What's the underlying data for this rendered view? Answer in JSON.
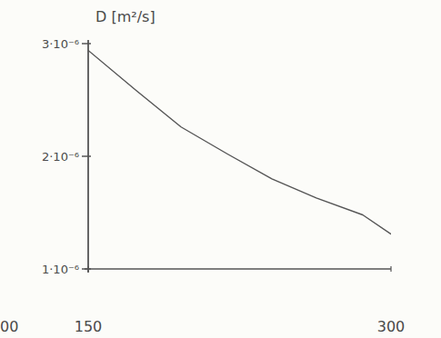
{
  "chart_data": {
    "type": "line",
    "y_label": "D [m²/s]",
    "x": [
      150,
      174,
      196,
      219,
      241,
      263,
      286,
      300
    ],
    "series": [
      {
        "color": "#555555",
        "values": [
          2.94e-06,
          2.58e-06,
          2.26e-06,
          2.02e-06,
          1.8e-06,
          1.63e-06,
          1.48e-06,
          1.31e-06
        ]
      }
    ],
    "xlim": [
      150,
      300
    ],
    "xticks": [
      150,
      300
    ],
    "ylim": [
      1e-06,
      3e-06
    ],
    "yticks": [
      {
        "value": 1e-06,
        "label": "1·10⁻⁶"
      },
      {
        "value": 2e-06,
        "label": "2·10⁻⁶"
      },
      {
        "value": 3e-06,
        "label": "3·10⁻⁶"
      }
    ],
    "grid": false,
    "annotations": [
      {
        "text": "00"
      }
    ]
  }
}
